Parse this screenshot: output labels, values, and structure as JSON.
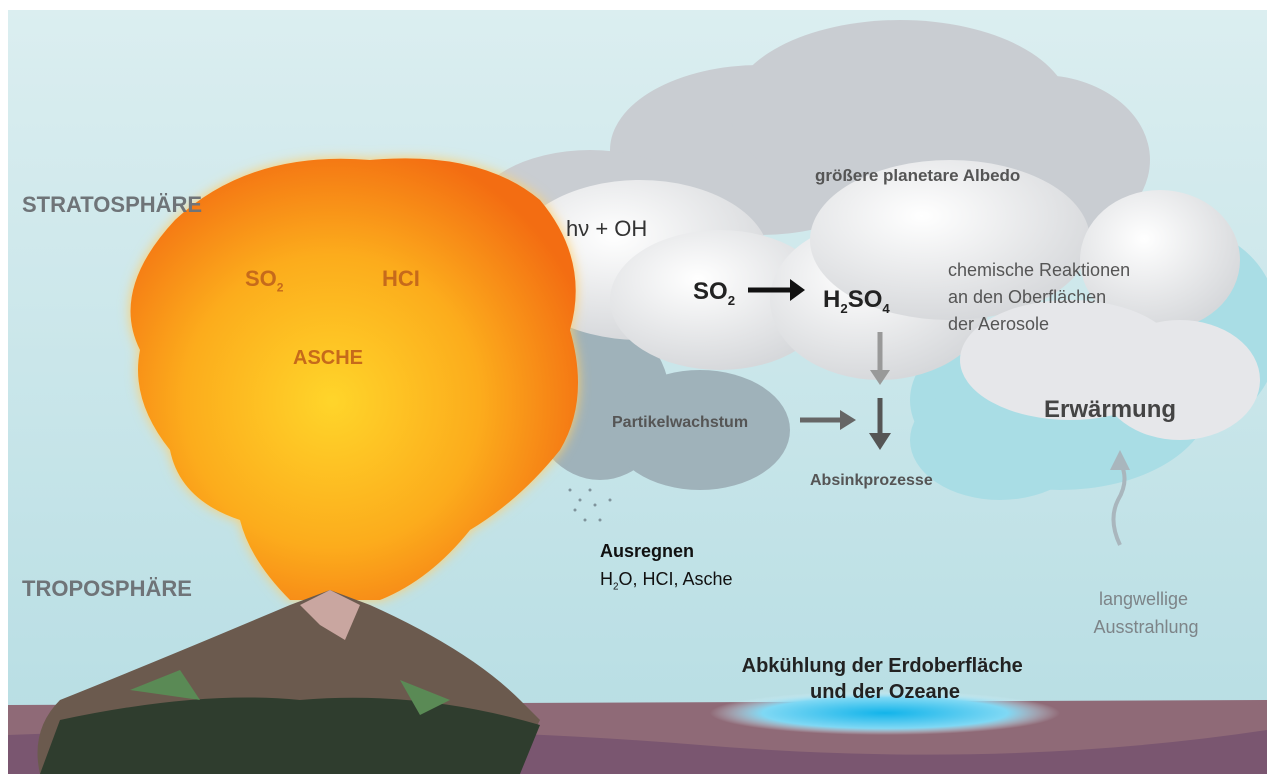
{
  "layers": {
    "stratosphere": "STRATOSPHÄRE",
    "troposphere": "TROPOSPHÄRE"
  },
  "eruption": {
    "so2": [
      "SO",
      "2"
    ],
    "hcl": "HCI",
    "ash": "ASCHE"
  },
  "reaction": {
    "photolysis": "hν + OH",
    "so2": [
      "SO",
      "2"
    ],
    "h2so4": [
      "H",
      "2",
      "SO",
      "4"
    ]
  },
  "albedo": "größere planetare Albedo",
  "surface_reactions": [
    "chemische Reaktionen",
    "an den Oberflächen",
    "der Aerosole"
  ],
  "particle_growth": "Partikelwachstum",
  "sinking": "Absinkprozesse",
  "warming": "Erwärmung",
  "rainout": {
    "title": "Ausregnen",
    "items": [
      "H",
      "2",
      "O, HCI, Asche"
    ]
  },
  "longwave": [
    "langwellige",
    "Ausstrahlung"
  ],
  "cooling": [
    "Abkühlung der Erdoberfläche",
    "und der Ozeane"
  ]
}
